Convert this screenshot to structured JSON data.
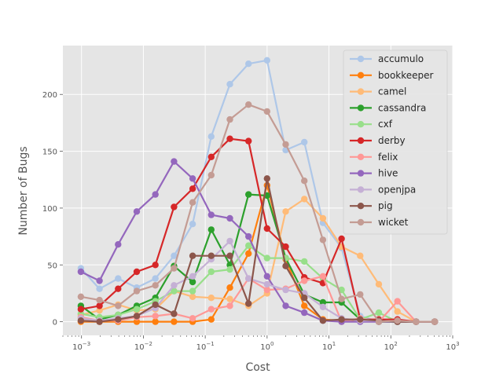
{
  "chart_data": {
    "type": "line",
    "title": "",
    "xlabel": "Cost",
    "ylabel": "Number of Bugs",
    "xscale": "log",
    "xlim": [
      0.0005,
      1000
    ],
    "ylim": [
      -12,
      243
    ],
    "grid": true,
    "legend_position": "top-right",
    "x": [
      0.0009765625,
      0.001953125,
      0.00390625,
      0.0078125,
      0.015625,
      0.03125,
      0.0625,
      0.125,
      0.25,
      0.5,
      1,
      2,
      4,
      8,
      16,
      32,
      64,
      128,
      256,
      512
    ],
    "x_ticks": [
      {
        "value": 0.001,
        "base": "10",
        "exp": "−3"
      },
      {
        "value": 0.01,
        "base": "10",
        "exp": "−2"
      },
      {
        "value": 0.1,
        "base": "10",
        "exp": "−1"
      },
      {
        "value": 1,
        "base": "10",
        "exp": "0"
      },
      {
        "value": 10,
        "base": "10",
        "exp": "1"
      },
      {
        "value": 100,
        "base": "10",
        "exp": "2"
      },
      {
        "value": 1000,
        "base": "10",
        "exp": "3"
      }
    ],
    "y_ticks": [
      0,
      50,
      100,
      150,
      200
    ],
    "series": [
      {
        "name": "accumulo",
        "color": "#aec7e8",
        "values": [
          47,
          29,
          38,
          30,
          38,
          58,
          86,
          163,
          209,
          227,
          230,
          151,
          158,
          87,
          65,
          5,
          0,
          0,
          0,
          0
        ]
      },
      {
        "name": "bookkeeper",
        "color": "#ff7f0e",
        "values": [
          0,
          0,
          0,
          0,
          0,
          0,
          0,
          2,
          30,
          60,
          120,
          55,
          14,
          2,
          1,
          1,
          0,
          0,
          0,
          0
        ]
      },
      {
        "name": "camel",
        "color": "#ffbb78",
        "values": [
          6,
          10,
          15,
          10,
          11,
          27,
          22,
          21,
          20,
          14,
          25,
          97,
          108,
          91,
          66,
          58,
          33,
          9,
          0,
          0
        ]
      },
      {
        "name": "cassandra",
        "color": "#2ca02c",
        "values": [
          14,
          2,
          6,
          14,
          21,
          49,
          35,
          81,
          50,
          112,
          111,
          56,
          24,
          17,
          17,
          2,
          0,
          0,
          0,
          0
        ]
      },
      {
        "name": "cxf",
        "color": "#98df8a",
        "values": [
          7,
          4,
          6,
          11,
          18,
          27,
          27,
          44,
          46,
          67,
          56,
          56,
          53,
          38,
          28,
          2,
          8,
          0,
          0,
          0
        ]
      },
      {
        "name": "derby",
        "color": "#d62728",
        "values": [
          11,
          14,
          29,
          44,
          50,
          101,
          117,
          145,
          161,
          159,
          82,
          66,
          39,
          34,
          73,
          2,
          2,
          2,
          0,
          0
        ]
      },
      {
        "name": "felix",
        "color": "#ff9896",
        "values": [
          4,
          1,
          1,
          4,
          5,
          7,
          3,
          11,
          14,
          38,
          28,
          29,
          36,
          40,
          0,
          3,
          0,
          18,
          0,
          0
        ]
      },
      {
        "name": "hive",
        "color": "#9467bd",
        "values": [
          44,
          36,
          68,
          97,
          112,
          141,
          126,
          94,
          91,
          75,
          40,
          14,
          8,
          1,
          0,
          0,
          0,
          0,
          0,
          0
        ]
      },
      {
        "name": "openjpa",
        "color": "#c5b0d5",
        "values": [
          3,
          1,
          3,
          5,
          12,
          32,
          40,
          55,
          71,
          38,
          33,
          28,
          25,
          13,
          3,
          1,
          1,
          0,
          0,
          0
        ]
      },
      {
        "name": "pig",
        "color": "#8c564b",
        "values": [
          1,
          0,
          2,
          5,
          15,
          7,
          58,
          58,
          58,
          16,
          126,
          49,
          21,
          1,
          2,
          2,
          1,
          0,
          0,
          0
        ]
      },
      {
        "name": "wicket",
        "color": "#c49c94",
        "values": [
          22,
          19,
          14,
          27,
          32,
          47,
          105,
          129,
          178,
          191,
          185,
          156,
          124,
          72,
          20,
          24,
          0,
          1,
          0,
          0
        ]
      }
    ]
  }
}
